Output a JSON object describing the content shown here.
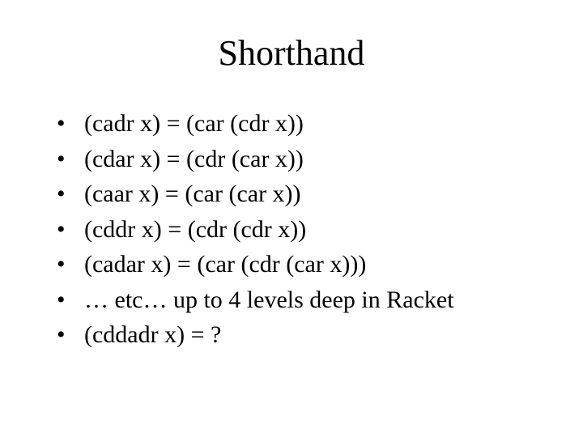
{
  "title": "Shorthand",
  "title_fontsize": 44,
  "body_fontsize": 30,
  "font_family": "Times New Roman",
  "text_color": "#000000",
  "background_color": "#ffffff",
  "bullets": [
    "(cadr x)  = (car (cdr x))",
    "(cdar x)  = (cdr (car x))",
    "(caar x) = (car (car x))",
    "(cddr x) = (cdr (cdr x))",
    "(cadar x) = (car (cdr (car x)))",
    "… etc…  up to 4 levels deep in Racket",
    "(cddadr x) = ?"
  ]
}
